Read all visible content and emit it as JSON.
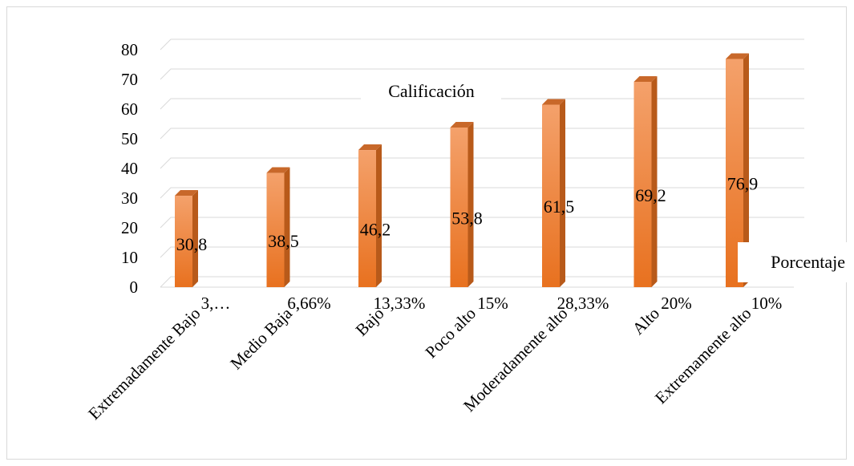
{
  "chart_data": {
    "type": "bar",
    "style": "3d-column",
    "title": "",
    "xlabel": "",
    "ylabel": "",
    "ylim": [
      0,
      80
    ],
    "yticks": [
      0,
      10,
      20,
      30,
      40,
      50,
      60,
      70,
      80
    ],
    "grid": true,
    "categories": [
      "Extremadamente Bajo",
      "Medio Baja",
      "Bajo",
      "Poco alto",
      "Moderadamente alto",
      "Alto",
      "Extremamente alto"
    ],
    "category_percentages": [
      "3,…",
      "6,66%",
      "13,33%",
      "15%",
      "28,33%",
      "20%",
      "10%"
    ],
    "series": [
      {
        "values": [
          30.8,
          38.5,
          46.2,
          53.8,
          61.5,
          69.2,
          76.9
        ],
        "data_labels": [
          "30,8",
          "38,5",
          "46,2",
          "53,8",
          "61,5",
          "69,2",
          "76,9"
        ]
      }
    ],
    "annotations": [
      "Calificación",
      "Porcentaje"
    ],
    "colors": {
      "bar_front_top": "#f4a16b",
      "bar_front_bottom": "#e8711f",
      "bar_side": "#b85a1a",
      "bar_top": "#c8682a",
      "grid": "#d9d9d9"
    }
  }
}
